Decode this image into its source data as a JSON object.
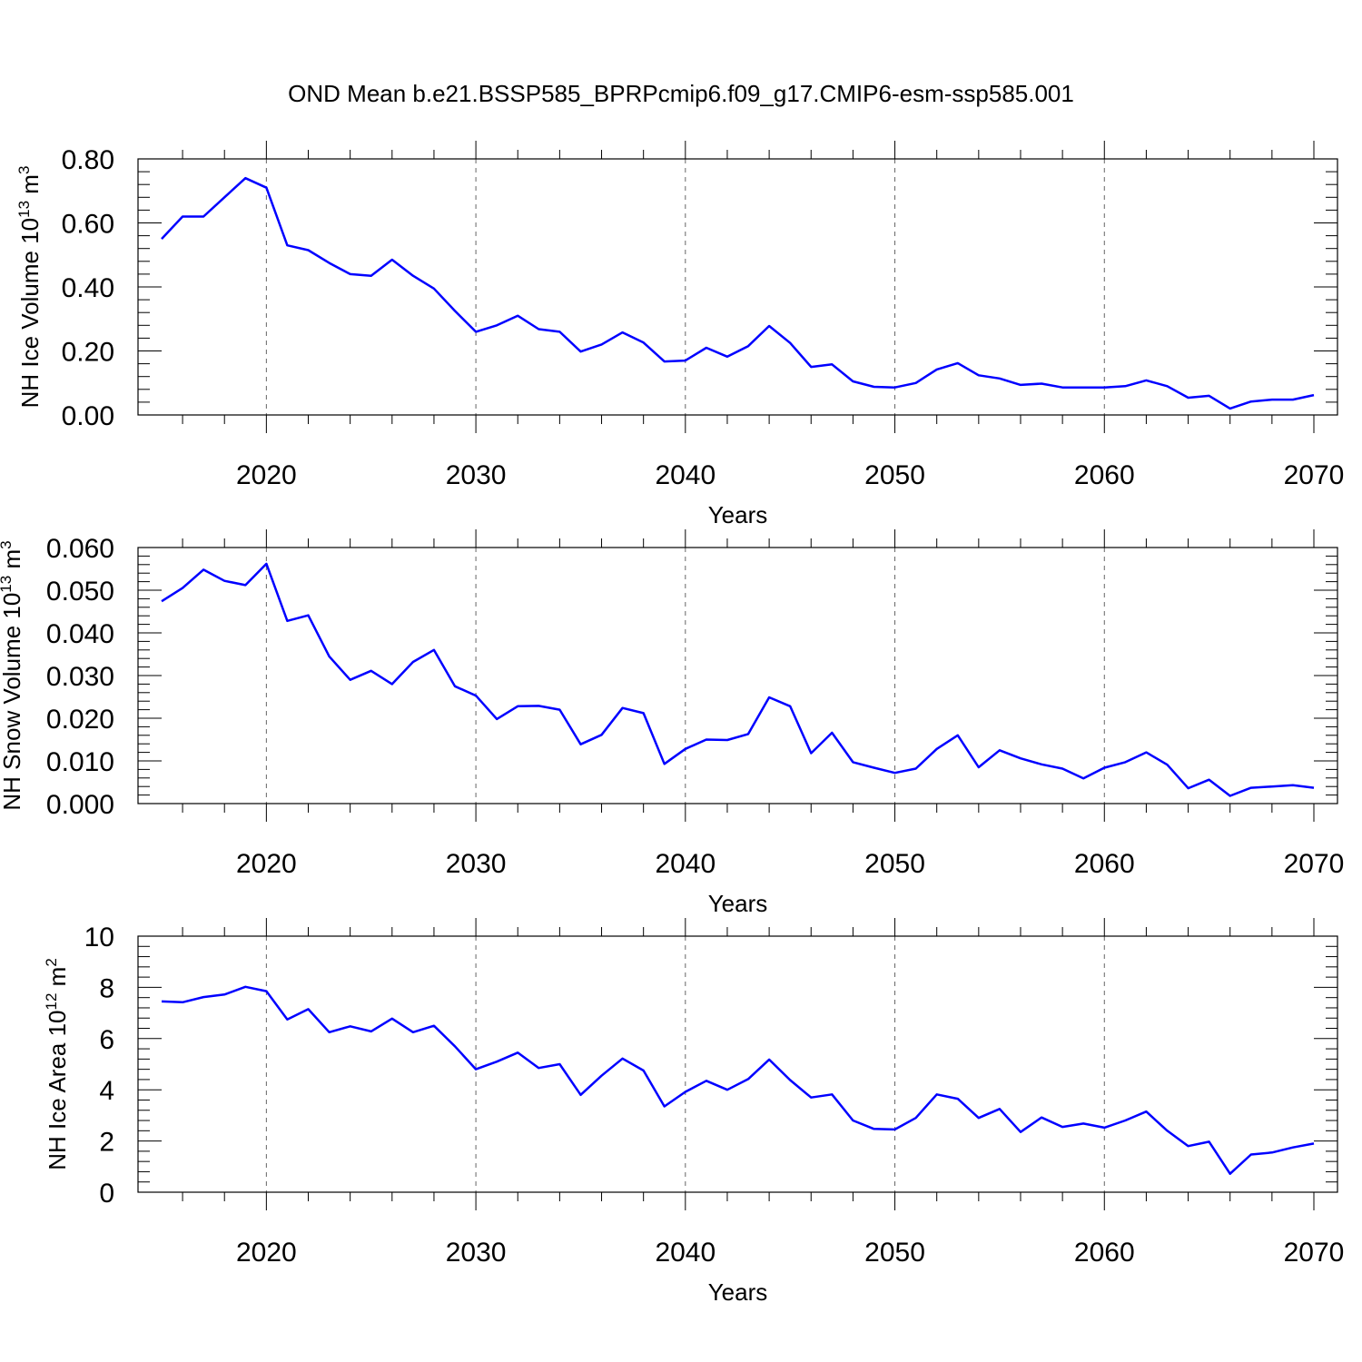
{
  "title": "OND Mean b.e21.BSSP585_BPRPcmip6.f09_g17.CMIP6-esm-ssp585.001",
  "line_color": "#0000ff",
  "chart_data": [
    {
      "type": "line",
      "ylabel_main": "NH Ice Volume 10",
      "ylabel_exp": "13",
      "ylabel_unit": " m",
      "ylabel_unit_exp": "3",
      "xlabel": "Years",
      "xlim": [
        2015,
        2070
      ],
      "ylim": [
        0,
        0.8
      ],
      "xticks": [
        2020,
        2030,
        2040,
        2050,
        2060,
        2070
      ],
      "yticks": [
        0,
        0.2,
        0.4,
        0.6,
        0.8
      ],
      "ytick_labels": [
        "0.00",
        "0.20",
        "0.40",
        "0.60",
        "0.80"
      ],
      "grid_x": [
        2020,
        2030,
        2040,
        2050,
        2060
      ],
      "x": [
        2015,
        2016,
        2017,
        2018,
        2019,
        2020,
        2021,
        2022,
        2023,
        2024,
        2025,
        2026,
        2027,
        2028,
        2029,
        2030,
        2031,
        2032,
        2033,
        2034,
        2035,
        2036,
        2037,
        2038,
        2039,
        2040,
        2041,
        2042,
        2043,
        2044,
        2045,
        2046,
        2047,
        2048,
        2049,
        2050,
        2051,
        2052,
        2053,
        2054,
        2055,
        2056,
        2057,
        2058,
        2059,
        2060,
        2061,
        2062,
        2063,
        2064,
        2065,
        2066,
        2067,
        2068,
        2069,
        2070
      ],
      "values": [
        0.55,
        0.62,
        0.62,
        0.68,
        0.74,
        0.71,
        0.53,
        0.515,
        0.475,
        0.44,
        0.435,
        0.485,
        0.435,
        0.395,
        0.325,
        0.26,
        0.28,
        0.31,
        0.268,
        0.26,
        0.198,
        0.22,
        0.258,
        0.226,
        0.167,
        0.17,
        0.21,
        0.182,
        0.215,
        0.278,
        0.225,
        0.15,
        0.158,
        0.105,
        0.088,
        0.086,
        0.1,
        0.142,
        0.162,
        0.124,
        0.114,
        0.094,
        0.098,
        0.086,
        0.086,
        0.086,
        0.09,
        0.108,
        0.09,
        0.054,
        0.06,
        0.02,
        0.042,
        0.048,
        0.048,
        0.062
      ]
    },
    {
      "type": "line",
      "ylabel_main": "NH Snow Volume 10",
      "ylabel_exp": "13",
      "ylabel_unit": " m",
      "ylabel_unit_exp": "3",
      "xlabel": "Years",
      "xlim": [
        2015,
        2070
      ],
      "ylim": [
        0,
        0.06
      ],
      "xticks": [
        2020,
        2030,
        2040,
        2050,
        2060,
        2070
      ],
      "yticks": [
        0,
        0.01,
        0.02,
        0.03,
        0.04,
        0.05,
        0.06
      ],
      "ytick_labels": [
        "0.000",
        "0.010",
        "0.020",
        "0.030",
        "0.040",
        "0.050",
        "0.060"
      ],
      "grid_x": [
        2020,
        2030,
        2040,
        2050,
        2060
      ],
      "x": [
        2015,
        2016,
        2017,
        2018,
        2019,
        2020,
        2021,
        2022,
        2023,
        2024,
        2025,
        2026,
        2027,
        2028,
        2029,
        2030,
        2031,
        2032,
        2033,
        2034,
        2035,
        2036,
        2037,
        2038,
        2039,
        2040,
        2041,
        2042,
        2043,
        2044,
        2045,
        2046,
        2047,
        2048,
        2049,
        2050,
        2051,
        2052,
        2053,
        2054,
        2055,
        2056,
        2057,
        2058,
        2059,
        2060,
        2061,
        2062,
        2063,
        2064,
        2065,
        2066,
        2067,
        2068,
        2069,
        2070
      ],
      "values": [
        0.0474,
        0.0505,
        0.0548,
        0.0522,
        0.0512,
        0.0562,
        0.0428,
        0.0441,
        0.0345,
        0.029,
        0.0311,
        0.028,
        0.0332,
        0.036,
        0.0275,
        0.0253,
        0.0198,
        0.0228,
        0.0229,
        0.022,
        0.0139,
        0.0161,
        0.0224,
        0.0212,
        0.0093,
        0.0128,
        0.015,
        0.0149,
        0.0163,
        0.0249,
        0.0228,
        0.0118,
        0.0166,
        0.0097,
        0.0084,
        0.0072,
        0.0082,
        0.0128,
        0.016,
        0.0085,
        0.0125,
        0.0106,
        0.0092,
        0.0082,
        0.0059,
        0.0084,
        0.0097,
        0.012,
        0.0091,
        0.0036,
        0.0056,
        0.0018,
        0.0037,
        0.004,
        0.0043,
        0.0037
      ]
    },
    {
      "type": "line",
      "ylabel_main": "NH Ice Area 10",
      "ylabel_exp": "12",
      "ylabel_unit": " m",
      "ylabel_unit_exp": "2",
      "xlabel": "Years",
      "xlim": [
        2015,
        2070
      ],
      "ylim": [
        0,
        10
      ],
      "xticks": [
        2020,
        2030,
        2040,
        2050,
        2060,
        2070
      ],
      "yticks": [
        0,
        2,
        4,
        6,
        8,
        10
      ],
      "ytick_labels": [
        "0",
        "2",
        "4",
        "6",
        "8",
        "10"
      ],
      "grid_x": [
        2020,
        2030,
        2040,
        2050,
        2060
      ],
      "x": [
        2015,
        2016,
        2017,
        2018,
        2019,
        2020,
        2021,
        2022,
        2023,
        2024,
        2025,
        2026,
        2027,
        2028,
        2029,
        2030,
        2031,
        2032,
        2033,
        2034,
        2035,
        2036,
        2037,
        2038,
        2039,
        2040,
        2041,
        2042,
        2043,
        2044,
        2045,
        2046,
        2047,
        2048,
        2049,
        2050,
        2051,
        2052,
        2053,
        2054,
        2055,
        2056,
        2057,
        2058,
        2059,
        2060,
        2061,
        2062,
        2063,
        2064,
        2065,
        2066,
        2067,
        2068,
        2069,
        2070
      ],
      "values": [
        7.45,
        7.42,
        7.62,
        7.72,
        8.02,
        7.85,
        6.75,
        7.15,
        6.25,
        6.48,
        6.28,
        6.78,
        6.25,
        6.5,
        5.7,
        4.8,
        5.1,
        5.45,
        4.85,
        5.0,
        3.8,
        4.55,
        5.22,
        4.75,
        3.35,
        3.92,
        4.35,
        4.0,
        4.42,
        5.18,
        4.38,
        3.7,
        3.82,
        2.8,
        2.47,
        2.45,
        2.9,
        3.82,
        3.65,
        2.9,
        3.25,
        2.35,
        2.92,
        2.55,
        2.68,
        2.52,
        2.8,
        3.15,
        2.4,
        1.8,
        1.97,
        0.72,
        1.47,
        1.55,
        1.75,
        1.9
      ]
    }
  ]
}
